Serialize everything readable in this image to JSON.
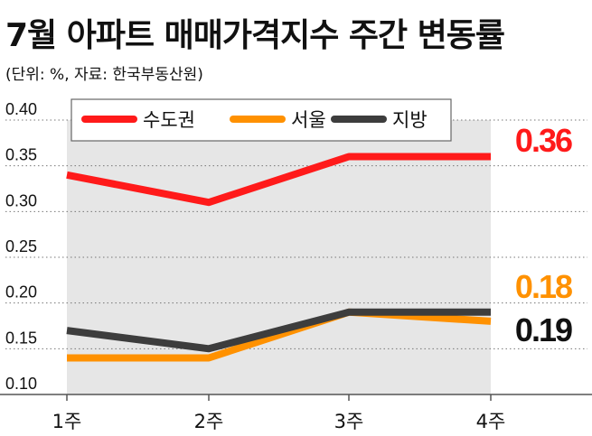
{
  "header": {
    "title": "7월 아파트 매매가격지수 주간 변동률",
    "subtitle": "(단위: %, 자료: 한국부동산원)"
  },
  "chart_data": {
    "type": "line",
    "categories": [
      "1주",
      "2주",
      "3주",
      "4주"
    ],
    "y_ticks": [
      "0.40",
      "0.35",
      "0.30",
      "0.25",
      "0.20",
      "0.15",
      "0.10"
    ],
    "ylim": [
      0.1,
      0.4
    ],
    "grid": "horizontal dotted",
    "legend_position": "top",
    "series": [
      {
        "name": "수도권",
        "values": [
          0.34,
          0.31,
          0.36,
          0.36
        ],
        "color": "#ff1a1a",
        "end_label": "0.36",
        "label_color": "#ff1a1a"
      },
      {
        "name": "서울",
        "values": [
          0.14,
          0.14,
          0.19,
          0.18
        ],
        "color": "#ff9100",
        "end_label": "0.18",
        "label_color": "#ff9100"
      },
      {
        "name": "지방",
        "values": [
          0.17,
          0.15,
          0.19,
          0.19
        ],
        "color": "#3d3d3d",
        "end_label": "0.19",
        "label_color": "#111111"
      }
    ]
  }
}
